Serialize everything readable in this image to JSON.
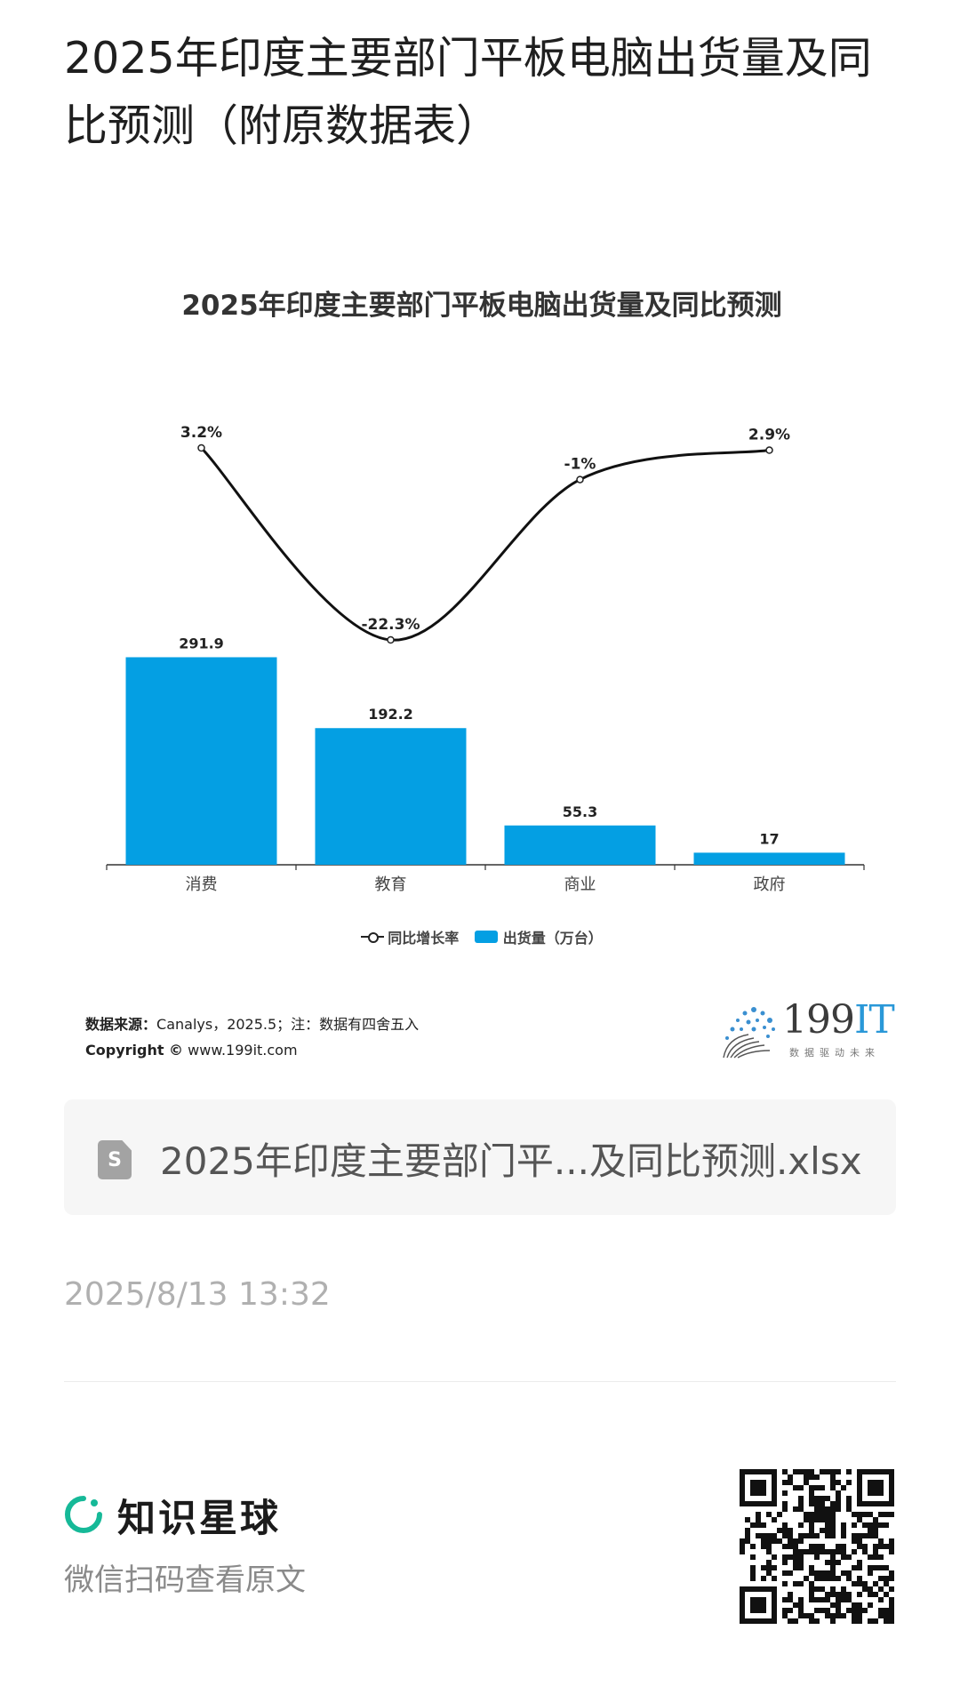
{
  "page_title": "2025年印度主要部门平板电脑出货量及同比预测（附原数据表）",
  "chart_data": {
    "type": "bar",
    "title": "2025年印度主要部门平板电脑出货量及同比预测",
    "categories": [
      "消费",
      "教育",
      "商业",
      "政府"
    ],
    "series": [
      {
        "name": "出货量（万台）",
        "type": "bar",
        "values": [
          291.9,
          192.2,
          55.3,
          17
        ],
        "labels": [
          "291.9",
          "192.2",
          "55.3",
          "17"
        ],
        "color": "#049fe3"
      },
      {
        "name": "同比增长率",
        "type": "line",
        "values": [
          3.2,
          -22.3,
          -1,
          2.9
        ],
        "labels": [
          "3.2%",
          "-22.3%",
          "-1%",
          "2.9%"
        ],
        "color": "#111111"
      }
    ],
    "legend": [
      "同比增长率",
      "出货量（万台）"
    ],
    "legend_position": "bottom",
    "grid": false
  },
  "source": {
    "label": "数据来源：",
    "text": "Canalys，2025.5；注：数据有四舍五入",
    "copyright_label": "Copyright ©",
    "copyright_site": "www.199it.com"
  },
  "brand": {
    "name_num": "199",
    "name_it": "IT",
    "tagline": "数据驱动未来"
  },
  "file": {
    "icon_letter": "S",
    "name": "2025年印度主要部门平...及同比预测.xlsx"
  },
  "timestamp": "2025/8/13 13:32",
  "footer": {
    "app_name": "知识星球",
    "scan_hint": "微信扫码查看原文"
  }
}
